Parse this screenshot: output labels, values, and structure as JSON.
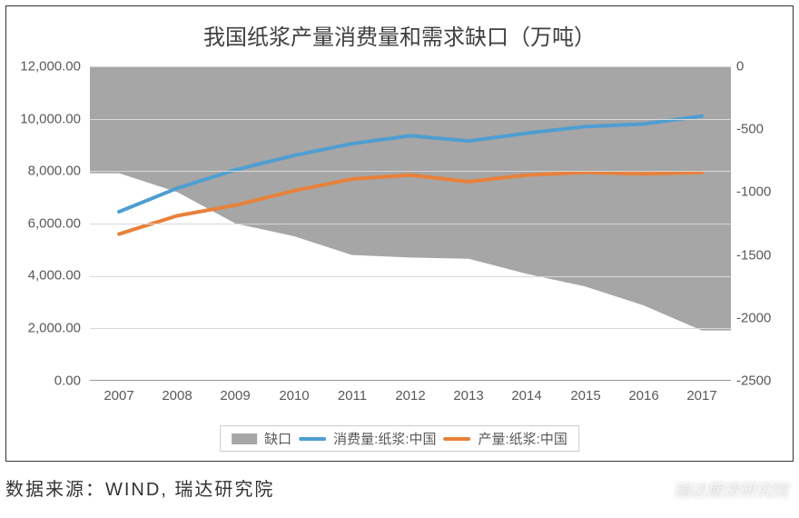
{
  "title": "我国纸浆产量消费量和需求缺口（万吨）",
  "source_label": "数据来源：WIND, 瑞达研究院",
  "watermark": "瑞达期货研究院",
  "chart": {
    "type": "combo-area-line-dual-axis",
    "background_color": "#ffffff",
    "grid_color": "#d9d9d9",
    "text_color": "#595959",
    "title_fontsize": 24,
    "label_fontsize": 15,
    "categories": [
      "2007",
      "2008",
      "2009",
      "2010",
      "2011",
      "2012",
      "2013",
      "2014",
      "2015",
      "2016",
      "2017"
    ],
    "left_axis": {
      "min": 0,
      "max": 12000,
      "step": 2000,
      "tick_labels": [
        "0.00",
        "2,000.00",
        "4,000.00",
        "6,000.00",
        "8,000.00",
        "10,000.00",
        "12,000.00"
      ]
    },
    "right_axis": {
      "min": -2500,
      "max": 0,
      "step": 500,
      "tick_labels": [
        "0",
        "-500",
        "-1000",
        "-1500",
        "-2000",
        "-2500"
      ]
    },
    "series": {
      "gap": {
        "label": "缺口",
        "axis": "right",
        "type": "area",
        "color": "#a6a6a6",
        "opacity": 1.0,
        "values": [
          -850,
          -1000,
          -1250,
          -1350,
          -1500,
          -1520,
          -1530,
          -1650,
          -1750,
          -1900,
          -2100
        ]
      },
      "consumption": {
        "label": "消费量:纸浆:中国",
        "axis": "left",
        "type": "line",
        "color": "#4e9ed1",
        "line_width": 4,
        "values": [
          6450,
          7350,
          8050,
          8600,
          9050,
          9350,
          9150,
          9450,
          9700,
          9800,
          10100
        ]
      },
      "production": {
        "label": "产量:纸浆:中国",
        "axis": "left",
        "type": "line",
        "color": "#e8813a",
        "line_width": 4,
        "values": [
          5600,
          6300,
          6700,
          7250,
          7700,
          7850,
          7600,
          7850,
          7950,
          7900,
          7950
        ]
      }
    },
    "legend_order": [
      "gap",
      "consumption",
      "production"
    ]
  }
}
